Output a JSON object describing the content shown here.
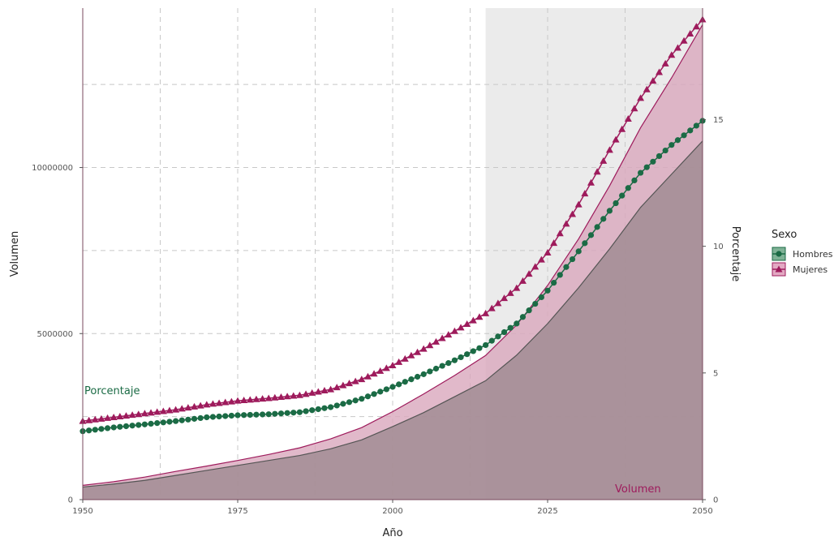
{
  "chart_data": {
    "type": "area",
    "xlabel": "Año",
    "ylabel": "Volumen",
    "ylabel_right": "Porcentaje",
    "xlim": [
      1950,
      2050
    ],
    "ylim": [
      0,
      14800000
    ],
    "ylim_right": [
      0,
      19.4
    ],
    "x_ticks": [
      1950,
      1975,
      2000,
      2025,
      2050
    ],
    "y_ticks": [
      {
        "value": 0,
        "label": "0"
      },
      {
        "value": 5000000,
        "label": "5000000"
      },
      {
        "value": 10000000,
        "label": "10000000"
      }
    ],
    "y_right_ticks": [
      {
        "value": 0,
        "label": "0"
      },
      {
        "value": 5,
        "label": "5"
      },
      {
        "value": 10,
        "label": "10"
      },
      {
        "value": 15,
        "label": "15"
      }
    ],
    "grid": true,
    "projection_shade": {
      "from": 2015,
      "to": 2050,
      "color": "#ebebeb"
    },
    "annotations": [
      {
        "text": "Porcentaje",
        "color": "#1b6b45"
      },
      {
        "text": "Volumen",
        "color": "#9e1b5c"
      }
    ],
    "legend": {
      "title": "Sexo",
      "position": "right"
    },
    "series": [
      {
        "name": "Hombres",
        "kind": "volume-area",
        "color": "#555555",
        "fill": "#9e8a90",
        "x": [
          1950,
          1955,
          1960,
          1965,
          1970,
          1975,
          1980,
          1985,
          1990,
          1995,
          2000,
          2005,
          2010,
          2015,
          2020,
          2025,
          2030,
          2035,
          2040,
          2045,
          2050
        ],
        "values": [
          380000,
          470000,
          580000,
          730000,
          880000,
          1030000,
          1180000,
          1330000,
          1530000,
          1800000,
          2200000,
          2620000,
          3100000,
          3580000,
          4350000,
          5300000,
          6380000,
          7550000,
          8800000,
          9800000,
          10800000
        ]
      },
      {
        "name": "Mujeres",
        "kind": "volume-area",
        "color": "#9e1b5c",
        "fill": "#d9a7bd",
        "x": [
          1950,
          1955,
          1960,
          1965,
          1970,
          1975,
          1980,
          1985,
          1990,
          1995,
          2000,
          2005,
          2010,
          2015,
          2020,
          2025,
          2030,
          2035,
          2040,
          2045,
          2050
        ],
        "values": [
          430000,
          540000,
          680000,
          850000,
          1010000,
          1180000,
          1360000,
          1560000,
          1830000,
          2170000,
          2650000,
          3180000,
          3740000,
          4340000,
          5260000,
          6450000,
          7850000,
          9450000,
          11200000,
          12700000,
          14300000
        ]
      },
      {
        "name": "Hombres",
        "kind": "percentage-line",
        "color": "#1b6b45",
        "marker": "circle",
        "x": [
          1950,
          1955,
          1960,
          1965,
          1970,
          1975,
          1980,
          1985,
          1990,
          1995,
          2000,
          2005,
          2010,
          2015,
          2020,
          2025,
          2030,
          2035,
          2040,
          2045,
          2050
        ],
        "values": [
          2.7,
          2.85,
          2.97,
          3.1,
          3.25,
          3.33,
          3.37,
          3.45,
          3.65,
          3.98,
          4.45,
          4.95,
          5.5,
          6.1,
          6.95,
          8.25,
          9.8,
          11.4,
          12.9,
          14.0,
          14.95
        ]
      },
      {
        "name": "Mujeres",
        "kind": "percentage-line",
        "color": "#9e1b5c",
        "marker": "triangle",
        "x": [
          1950,
          1955,
          1960,
          1965,
          1970,
          1975,
          1980,
          1985,
          1990,
          1995,
          2000,
          2005,
          2010,
          2015,
          2020,
          2025,
          2030,
          2035,
          2040,
          2045,
          2050
        ],
        "values": [
          3.1,
          3.25,
          3.4,
          3.55,
          3.75,
          3.9,
          4.0,
          4.12,
          4.35,
          4.75,
          5.3,
          5.95,
          6.65,
          7.35,
          8.35,
          9.75,
          11.65,
          13.8,
          15.85,
          17.55,
          18.95
        ]
      }
    ]
  }
}
